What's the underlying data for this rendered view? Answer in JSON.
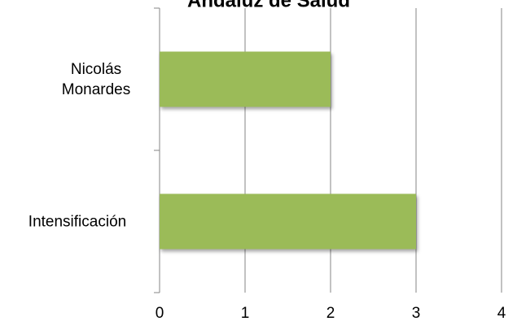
{
  "chart_data": {
    "type": "bar",
    "orientation": "horizontal",
    "title": "Andaluz de Salud",
    "categories": [
      "Nicolás Monardes",
      "Intensificación"
    ],
    "values": [
      2,
      3
    ],
    "color": "#9bbb59",
    "xlim": [
      0,
      4
    ],
    "xticks": [
      0,
      1,
      2,
      3,
      4
    ],
    "grid": true
  }
}
